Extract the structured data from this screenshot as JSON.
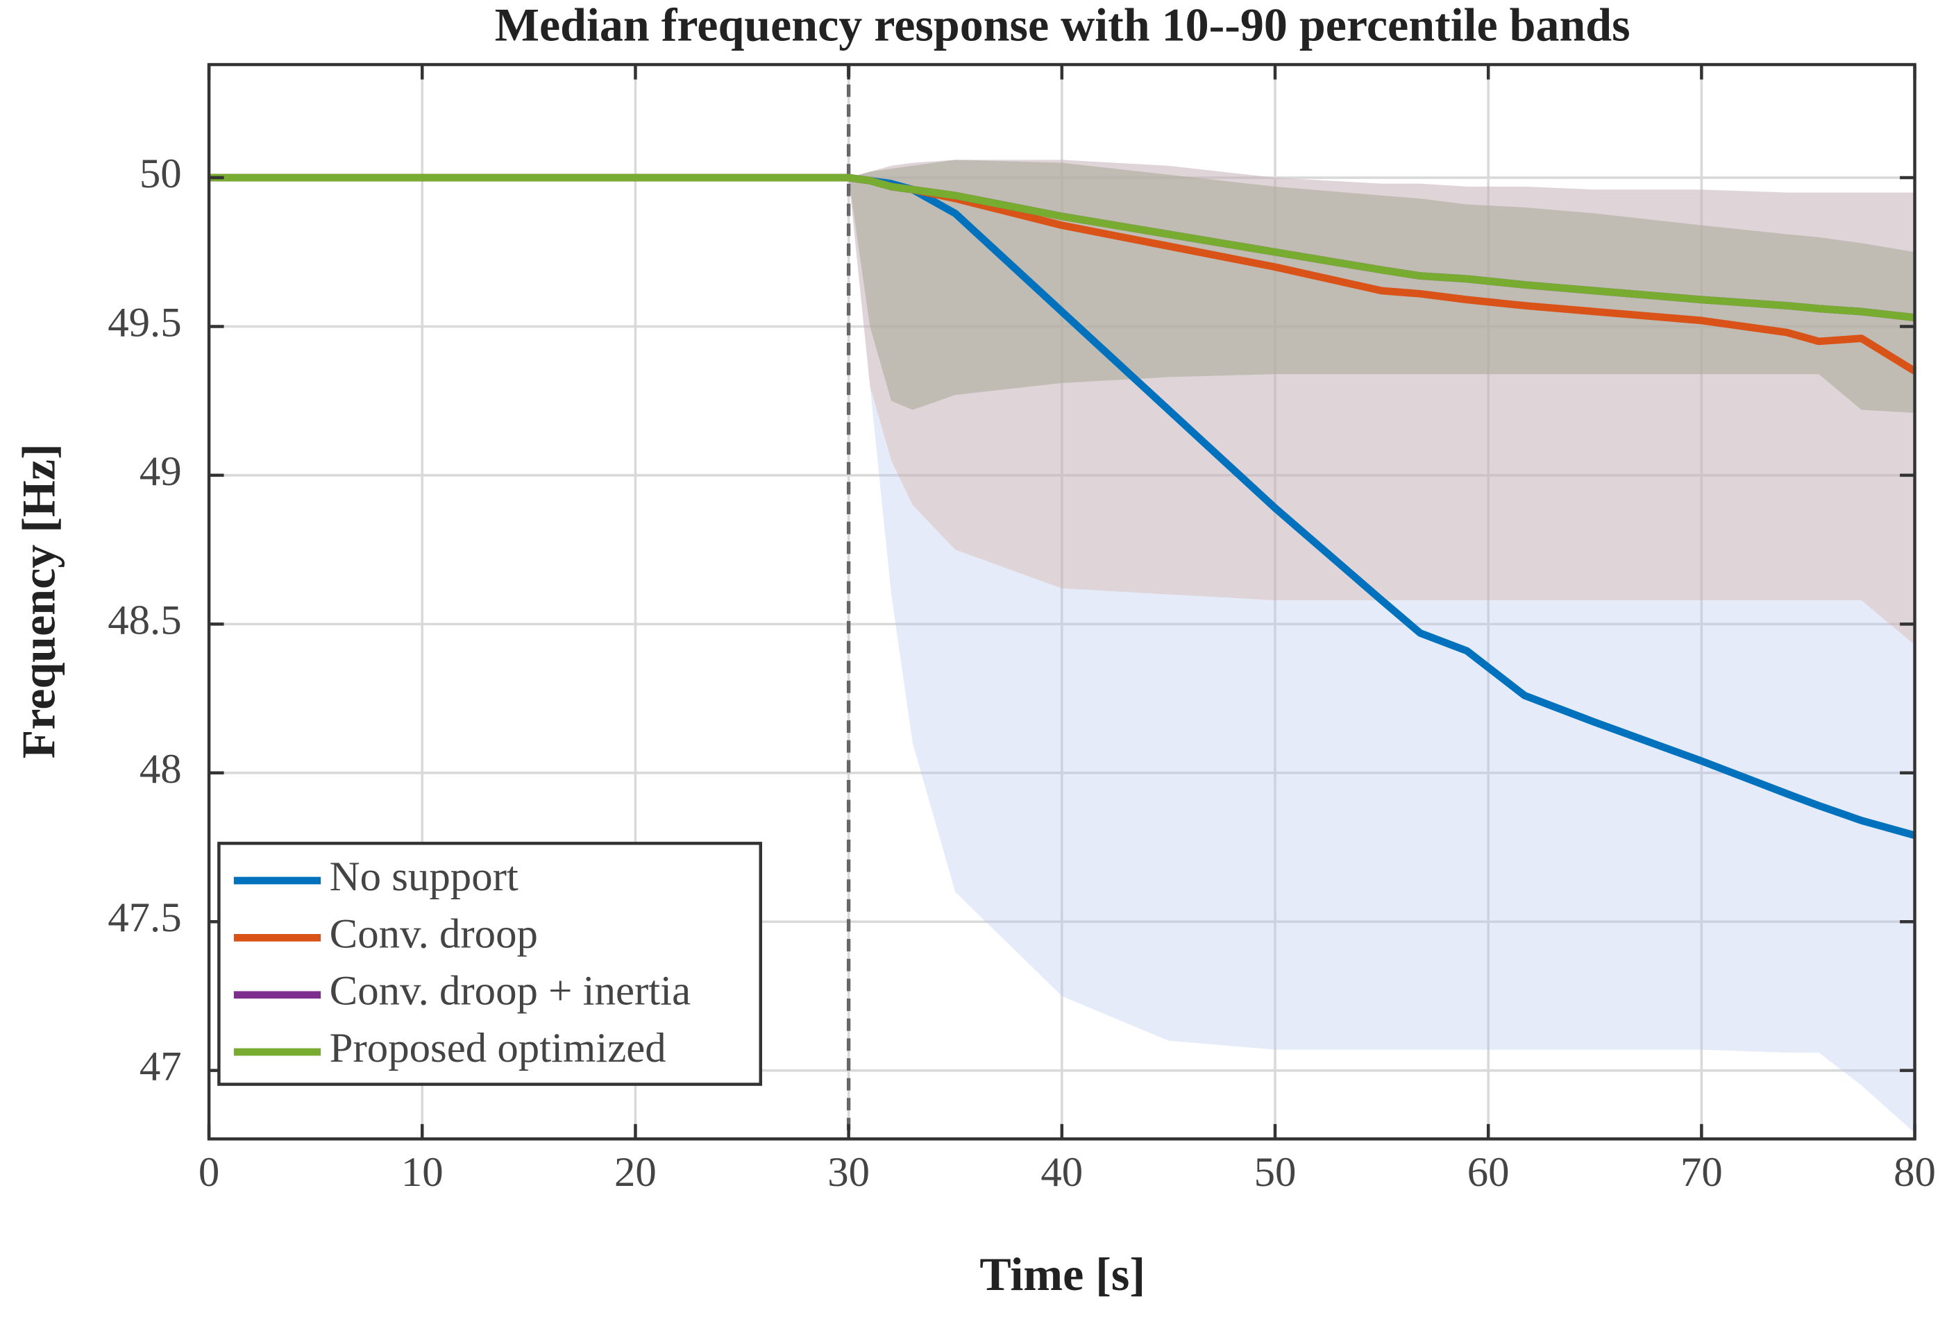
{
  "chart_data": {
    "type": "line",
    "title": "Median frequency response with 10--90 percentile bands",
    "x_label": "Time [s]",
    "y_label": "Frequency [Hz]",
    "x": [
      0,
      30,
      31,
      32,
      33,
      35,
      40,
      45,
      50,
      55,
      56.8,
      59,
      61.7,
      65,
      70,
      74,
      75.5,
      77.5,
      80
    ],
    "xlim": [
      0,
      80
    ],
    "xticks": [
      0,
      10,
      20,
      30,
      40,
      50,
      60,
      70,
      80
    ],
    "ylim": [
      46.77,
      50.38
    ],
    "yticks": [
      47,
      47.5,
      48,
      48.5,
      49,
      49.5,
      50
    ],
    "grid": true,
    "legend": "lower left",
    "vline_x": 30,
    "series": [
      {
        "name": "No support",
        "color": "#0072bd",
        "band_color": "#b4c6ec",
        "values": [
          50,
          50,
          49.99,
          49.98,
          49.96,
          49.88,
          49.55,
          49.22,
          48.89,
          48.58,
          48.47,
          48.41,
          48.26,
          48.17,
          48.04,
          47.93,
          47.89,
          47.84,
          47.79
        ],
        "band_low": [
          50,
          50,
          49.3,
          48.6,
          48.1,
          47.6,
          47.25,
          47.1,
          47.07,
          47.07,
          47.07,
          47.07,
          47.07,
          47.07,
          47.07,
          47.06,
          47.06,
          46.95,
          46.79
        ],
        "band_high": [
          50,
          50,
          50.02,
          50.04,
          50.05,
          50.06,
          50.06,
          50.04,
          50.0,
          49.98,
          49.98,
          49.97,
          49.97,
          49.96,
          49.96,
          49.95,
          49.95,
          49.95,
          49.95
        ]
      },
      {
        "name": "Conv. droop",
        "color": "#d95319",
        "band_color": "#d3a99e",
        "values": [
          50,
          50,
          49.99,
          49.97,
          49.96,
          49.93,
          49.84,
          49.77,
          49.7,
          49.62,
          49.61,
          49.59,
          49.57,
          49.55,
          49.52,
          49.48,
          49.45,
          49.46,
          49.35
        ],
        "band_low": [
          50,
          50,
          49.3,
          49.05,
          48.9,
          48.75,
          48.62,
          48.6,
          48.58,
          48.58,
          48.58,
          48.58,
          48.58,
          48.58,
          48.58,
          48.58,
          48.58,
          48.58,
          48.43
        ],
        "band_high": [
          50,
          50,
          50.02,
          50.04,
          50.05,
          50.06,
          50.06,
          50.04,
          50.0,
          49.98,
          49.98,
          49.97,
          49.97,
          49.96,
          49.96,
          49.95,
          49.95,
          49.95,
          49.95
        ]
      },
      {
        "name": "Conv. droop + inertia",
        "color": "#7e2f8e",
        "band_color": "#a99cb0",
        "values": [
          50,
          50,
          49.99,
          49.97,
          49.96,
          49.94,
          49.87,
          49.81,
          49.75,
          49.69,
          49.67,
          49.66,
          49.64,
          49.62,
          49.59,
          49.57,
          49.56,
          49.55,
          49.53
        ],
        "band_low": [
          50,
          50,
          49.5,
          49.25,
          49.22,
          49.27,
          49.31,
          49.33,
          49.34,
          49.34,
          49.34,
          49.34,
          49.34,
          49.34,
          49.34,
          49.34,
          49.34,
          49.22,
          49.21
        ],
        "band_high": [
          50,
          50,
          50.02,
          50.03,
          50.04,
          50.06,
          50.05,
          50.01,
          49.97,
          49.94,
          49.93,
          49.91,
          49.9,
          49.88,
          49.84,
          49.81,
          49.8,
          49.78,
          49.75
        ]
      },
      {
        "name": "Proposed optimized",
        "color": "#77ac30",
        "band_color": "#aab58a",
        "values": [
          50,
          50,
          49.99,
          49.97,
          49.96,
          49.94,
          49.87,
          49.81,
          49.75,
          49.69,
          49.67,
          49.66,
          49.64,
          49.62,
          49.59,
          49.57,
          49.56,
          49.55,
          49.53
        ],
        "band_low": [
          50,
          50,
          49.5,
          49.25,
          49.22,
          49.27,
          49.31,
          49.33,
          49.34,
          49.34,
          49.34,
          49.34,
          49.34,
          49.34,
          49.34,
          49.34,
          49.34,
          49.22,
          49.21
        ],
        "band_high": [
          50,
          50,
          50.02,
          50.03,
          50.04,
          50.06,
          50.05,
          50.01,
          49.97,
          49.94,
          49.93,
          49.91,
          49.9,
          49.88,
          49.84,
          49.81,
          49.8,
          49.78,
          49.75
        ]
      }
    ]
  }
}
